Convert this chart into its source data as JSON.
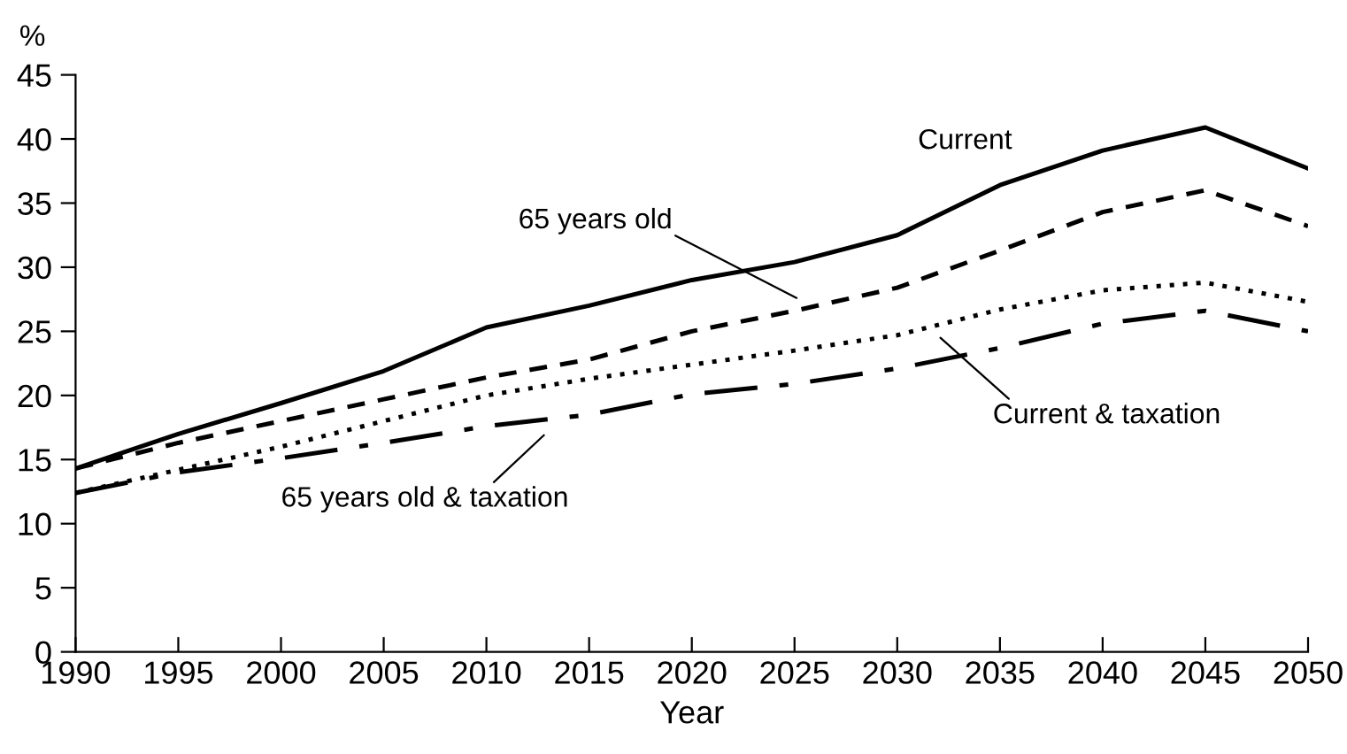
{
  "chart_data": {
    "type": "line",
    "xlabel": "Year",
    "ylabel": "%",
    "x": [
      1990,
      1995,
      2000,
      2005,
      2010,
      2015,
      2020,
      2025,
      2030,
      2035,
      2040,
      2045,
      2050
    ],
    "series": [
      {
        "color": "#000000",
        "line_style": "solid",
        "values": [
          14.3,
          17,
          19.4,
          21.9,
          25.3,
          27,
          29,
          30.4,
          32.5,
          36.4,
          39.1,
          40.9,
          37.7
        ]
      },
      {
        "color": "#000000",
        "line_style": "dashed",
        "values": [
          14.3,
          16.3,
          18,
          19.7,
          21.4,
          22.8,
          25,
          26.6,
          28.4,
          31.3,
          34.3,
          36,
          33.2
        ]
      },
      {
        "color": "#000000",
        "line_style": "dotted",
        "values": [
          12.4,
          14.2,
          16,
          18,
          20,
          21.3,
          22.4,
          23.5,
          24.7,
          26.7,
          28.2,
          28.8,
          27.3
        ]
      },
      {
        "color": "#000000",
        "line_style": "dashdot",
        "values": [
          12.4,
          14,
          15.1,
          16.3,
          17.6,
          18.5,
          20.1,
          20.9,
          22.1,
          23.7,
          25.6,
          26.6,
          25
        ]
      }
    ],
    "annotations": [
      "Current",
      "65 years old",
      "Current & taxation",
      "65 years old & taxation"
    ],
    "xlim": [
      1990,
      2050
    ],
    "xticks": [
      1990,
      1995,
      2000,
      2005,
      2010,
      2015,
      2020,
      2025,
      2030,
      2035,
      2040,
      2045,
      2050
    ],
    "ylim": [
      0,
      45
    ],
    "yticks": [
      0,
      5,
      10,
      15,
      20,
      25,
      30,
      35,
      40,
      45
    ],
    "grid": false,
    "legend": false,
    "marker": "none"
  }
}
